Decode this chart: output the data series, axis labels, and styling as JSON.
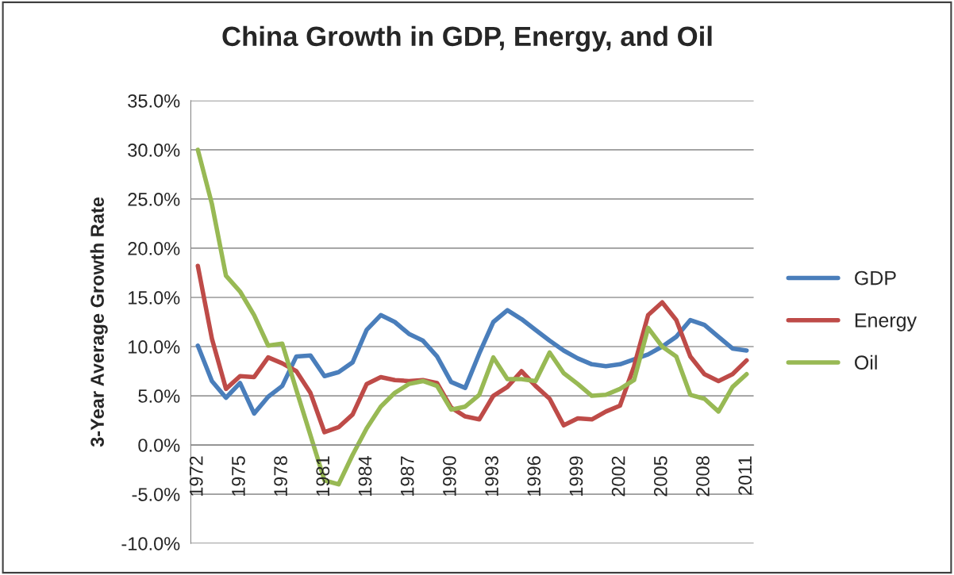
{
  "chart_data": {
    "type": "line",
    "title": "China Growth in GDP, Energy, and Oil",
    "ylabel": "3-Year Average Growth Rate",
    "categories": [
      "1972",
      null,
      null,
      "1975",
      null,
      null,
      "1978",
      null,
      null,
      "1981",
      null,
      null,
      "1984",
      null,
      null,
      "1987",
      null,
      null,
      "1990",
      null,
      null,
      "1993",
      null,
      null,
      "1996",
      null,
      null,
      "1999",
      null,
      null,
      "2002",
      null,
      null,
      "2005",
      null,
      null,
      "2008",
      null,
      null,
      "2011"
    ],
    "series": [
      {
        "name": "GDP",
        "color": "#4a7ebb",
        "values": [
          10.1,
          6.5,
          4.8,
          6.3,
          3.2,
          4.9,
          6.0,
          9.0,
          9.1,
          7.0,
          7.4,
          8.4,
          11.7,
          13.2,
          12.5,
          11.3,
          10.6,
          9.0,
          6.4,
          5.8,
          9.3,
          12.5,
          13.7,
          12.8,
          11.7,
          10.6,
          9.6,
          8.8,
          8.2,
          8.0,
          8.2,
          8.7,
          9.2,
          10.0,
          11.0,
          12.7,
          12.2,
          11.0,
          9.8,
          9.6
        ]
      },
      {
        "name": "Energy",
        "color": "#be4b48",
        "values": [
          18.2,
          10.8,
          5.7,
          7.0,
          6.9,
          8.9,
          8.3,
          7.5,
          5.3,
          1.3,
          1.8,
          3.1,
          6.2,
          6.9,
          6.6,
          6.5,
          6.6,
          6.3,
          3.8,
          2.9,
          2.6,
          5.0,
          5.9,
          7.5,
          6.0,
          4.7,
          2.0,
          2.7,
          2.6,
          3.4,
          4.0,
          8.0,
          13.2,
          14.5,
          12.7,
          9.0,
          7.2,
          6.5,
          7.2,
          8.6
        ]
      },
      {
        "name": "Oil",
        "color": "#98b954",
        "values": [
          30.0,
          24.5,
          17.2,
          15.6,
          13.2,
          10.1,
          10.3,
          5.6,
          1.0,
          -3.6,
          -4.0,
          -1.0,
          1.7,
          3.9,
          5.3,
          6.2,
          6.5,
          6.0,
          3.6,
          3.9,
          5.1,
          8.9,
          6.7,
          6.7,
          6.5,
          9.4,
          7.3,
          6.2,
          5.0,
          5.1,
          5.7,
          6.6,
          11.9,
          10.0,
          9.0,
          5.1,
          4.7,
          3.4,
          5.9,
          7.2
        ]
      }
    ],
    "ylim": [
      -10,
      35
    ],
    "yticks": [
      {
        "value": -10,
        "label": "-10.0%"
      },
      {
        "value": -5,
        "label": "-5.0%"
      },
      {
        "value": 0,
        "label": "0.0%"
      },
      {
        "value": 5,
        "label": "5.0%"
      },
      {
        "value": 10,
        "label": "10.0%"
      },
      {
        "value": 15,
        "label": "15.0%"
      },
      {
        "value": 20,
        "label": "20.0%"
      },
      {
        "value": 25,
        "label": "25.0%"
      },
      {
        "value": 30,
        "label": "30.0%"
      },
      {
        "value": 35,
        "label": "35.0%"
      }
    ],
    "grid": "y",
    "legend": "right",
    "marker": "none",
    "line_style": "solid"
  }
}
